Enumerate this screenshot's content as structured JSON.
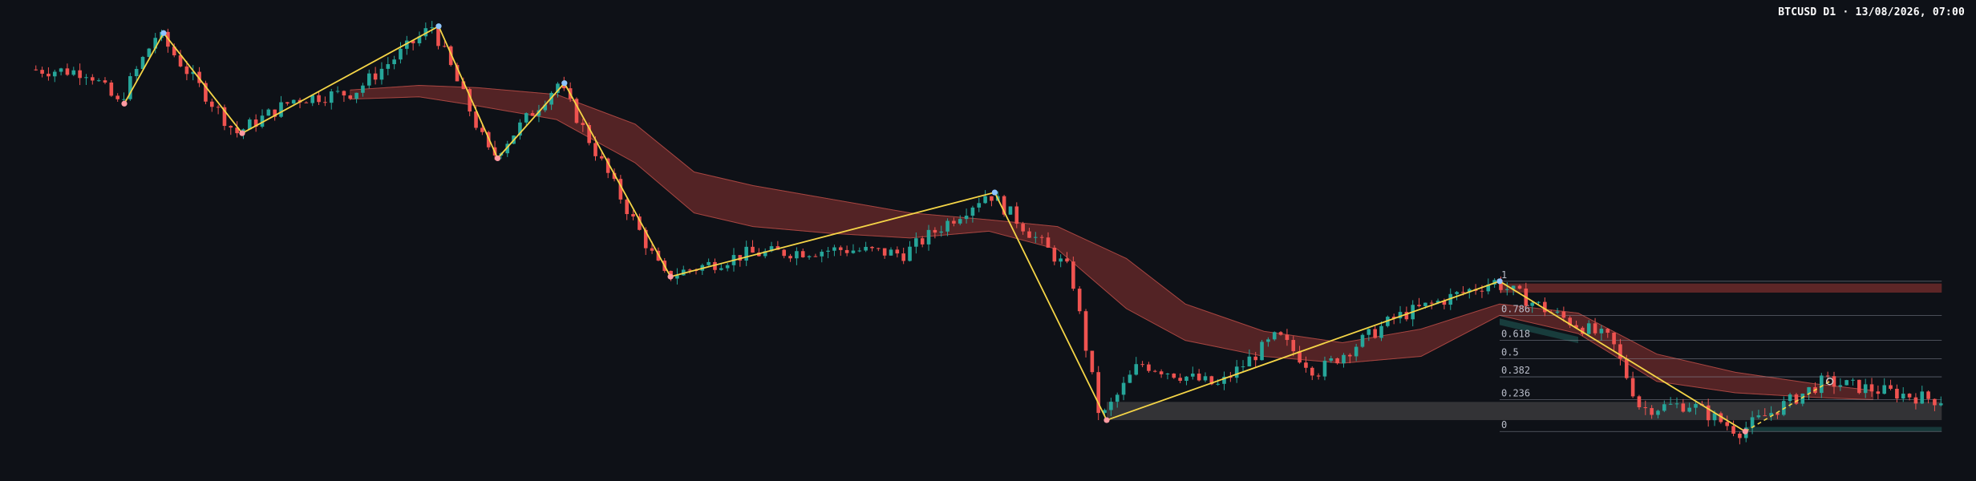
{
  "header": {
    "title": "BTCUSD D1 · 13/08/2026, 07:00"
  },
  "colors": {
    "background": "#0e1117",
    "bull": "#26a69a",
    "bear": "#ef5350",
    "zigzag": "#f5d547",
    "peak": "#8ec5ff",
    "trough": "#ff9aa2",
    "cloud_bear": "#6b2a2a",
    "cloud_bull": "#1f5a55",
    "zone_grey": "#3a3a3c"
  },
  "chart_data": {
    "type": "candlestick",
    "ylim": [
      0,
      100
    ],
    "x_range": [
      0,
      100
    ],
    "zigzag": [
      {
        "x": 6.0,
        "y": 79.0
      },
      {
        "x": 8.0,
        "y": 94.5
      },
      {
        "x": 12.0,
        "y": 72.5
      },
      {
        "x": 22.0,
        "y": 96.0
      },
      {
        "x": 25.0,
        "y": 67.0
      },
      {
        "x": 28.4,
        "y": 83.5
      },
      {
        "x": 33.8,
        "y": 41.0
      },
      {
        "x": 50.3,
        "y": 59.5
      },
      {
        "x": 56.0,
        "y": 9.5
      },
      {
        "x": 76.0,
        "y": 40.0
      },
      {
        "x": 88.5,
        "y": 7.0
      }
    ],
    "zigzag_pending": [
      {
        "x": 88.5,
        "y": 7.0
      },
      {
        "x": 92.8,
        "y": 18.0
      }
    ],
    "cloud": [
      {
        "x": 17.5,
        "top": 82.0,
        "bottom": 80.0
      },
      {
        "x": 21.0,
        "top": 83.0,
        "bottom": 80.5
      },
      {
        "x": 24.0,
        "top": 82.5,
        "bottom": 78.5
      },
      {
        "x": 28.0,
        "top": 81.0,
        "bottom": 75.5
      },
      {
        "x": 32.0,
        "top": 74.5,
        "bottom": 66.0
      },
      {
        "x": 35.0,
        "top": 64.0,
        "bottom": 55.0
      },
      {
        "x": 38.0,
        "top": 61.0,
        "bottom": 52.0
      },
      {
        "x": 42.0,
        "top": 58.0,
        "bottom": 50.5
      },
      {
        "x": 46.0,
        "top": 55.0,
        "bottom": 49.5
      },
      {
        "x": 50.0,
        "top": 53.5,
        "bottom": 51.0
      },
      {
        "x": 53.5,
        "top": 52.0,
        "bottom": 47.0
      },
      {
        "x": 57.0,
        "top": 45.0,
        "bottom": 34.0
      },
      {
        "x": 60.0,
        "top": 35.0,
        "bottom": 27.0
      },
      {
        "x": 64.0,
        "top": 29.0,
        "bottom": 23.5
      },
      {
        "x": 68.0,
        "top": 26.5,
        "bottom": 22.0
      },
      {
        "x": 72.0,
        "top": 29.5,
        "bottom": 23.5
      },
      {
        "x": 76.0,
        "top": 35.0,
        "bottom": 32.5
      },
      {
        "x": 80.0,
        "top": 33.0,
        "bottom": 28.5
      },
      {
        "x": 84.0,
        "top": 24.0,
        "bottom": 18.0
      },
      {
        "x": 88.0,
        "top": 20.0,
        "bottom": 15.5
      },
      {
        "x": 92.0,
        "top": 17.5,
        "bottom": 14.5
      },
      {
        "x": 95.0,
        "top": 16.0,
        "bottom": 14.0
      }
    ],
    "fib_levels": [
      {
        "label": "1",
        "value": 40.0
      },
      {
        "label": "0.786",
        "value": 32.5
      },
      {
        "label": "0.618",
        "value": 27.0
      },
      {
        "label": "0.5",
        "value": 23.0
      },
      {
        "label": "0.382",
        "value": 19.0
      },
      {
        "label": "0.236",
        "value": 14.0
      },
      {
        "label": "0",
        "value": 7.0
      }
    ],
    "zones": [
      {
        "kind": "supply",
        "x_start": 76.0,
        "x_end": 98.5,
        "y_low": 37.5,
        "y_high": 39.5
      },
      {
        "kind": "demand",
        "x_start": 56.0,
        "x_end": 98.5,
        "y_low": 9.5,
        "y_high": 13.5
      },
      {
        "kind": "demand-small",
        "x_start": 88.5,
        "x_end": 98.5,
        "y_low": 7.0,
        "y_high": 8.0
      }
    ],
    "anchors": [
      {
        "x": 6.0,
        "y": 79.0
      },
      {
        "x": 12.0,
        "y": 72.5
      },
      {
        "x": 18.0,
        "y": 81.5
      },
      {
        "x": 22.0,
        "y": 96.0
      },
      {
        "x": 25.0,
        "y": 67.0
      },
      {
        "x": 28.4,
        "y": 83.5
      },
      {
        "x": 33.8,
        "y": 41.0
      },
      {
        "x": 38.0,
        "y": 46.0
      },
      {
        "x": 43.0,
        "y": 47.0
      },
      {
        "x": 46.0,
        "y": 46.0
      },
      {
        "x": 50.3,
        "y": 59.5
      },
      {
        "x": 54.5,
        "y": 42.0
      },
      {
        "x": 56.0,
        "y": 9.5
      },
      {
        "x": 58.0,
        "y": 22.0
      },
      {
        "x": 62.0,
        "y": 17.0
      },
      {
        "x": 65.0,
        "y": 28.0
      },
      {
        "x": 67.0,
        "y": 20.0
      },
      {
        "x": 71.0,
        "y": 32.0
      },
      {
        "x": 76.0,
        "y": 40.0
      },
      {
        "x": 79.0,
        "y": 33.0
      },
      {
        "x": 82.0,
        "y": 27.0
      },
      {
        "x": 83.5,
        "y": 12.0
      },
      {
        "x": 86.0,
        "y": 13.0
      },
      {
        "x": 88.5,
        "y": 7.0
      },
      {
        "x": 92.8,
        "y": 18.0
      },
      {
        "x": 98.5,
        "y": 14.0
      }
    ],
    "seed_start": [
      {
        "x": 1.5,
        "y": 86.5
      },
      {
        "x": 4.5,
        "y": 86.0
      },
      {
        "x": 6.0,
        "y": 79.0
      },
      {
        "x": 8.0,
        "y": 94.5
      },
      {
        "x": 12.0,
        "y": 72.5
      },
      {
        "x": 15.0,
        "y": 80.0
      }
    ]
  }
}
